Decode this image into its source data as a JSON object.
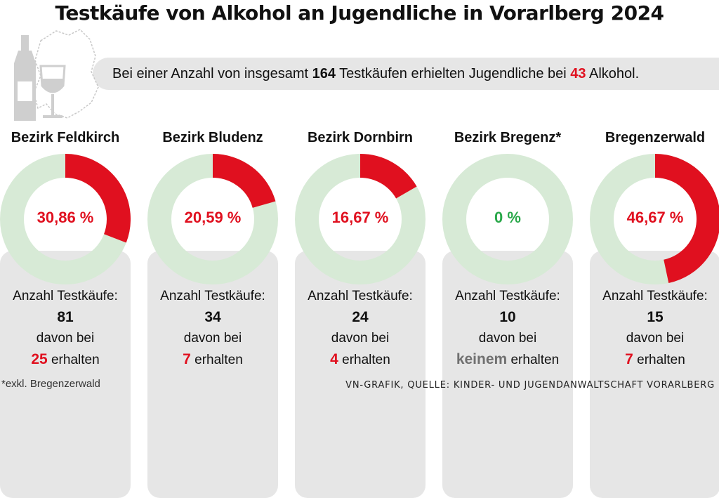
{
  "title": "Testkäufe von Alkohol an Jugendliche in Vorarlberg 2024",
  "summary": {
    "prefix": "Bei einer Anzahl von insgesamt ",
    "total": "164",
    "middle": " Testkäufen erhielten Jugendliche bei ",
    "alcohol_count": "43",
    "suffix": " Alkohol."
  },
  "colors": {
    "red": "#e0101f",
    "green": "#2aa84a",
    "ring": "#d7ead6",
    "card": "#e6e6e6"
  },
  "icons": [
    "bottle-icon",
    "wine-glass-icon",
    "vorarlberg-map-icon"
  ],
  "chart_data": {
    "type": "donut",
    "districts": [
      {
        "name": "Bezirk Feldkirch",
        "percent": 30.86,
        "percent_label": "30,86 %",
        "tests": "81",
        "received": "25",
        "count_label": "Anzahl Testkäufe:",
        "davon": "davon bei",
        "erhalten": " erhalten"
      },
      {
        "name": "Bezirk Bludenz",
        "percent": 20.59,
        "percent_label": "20,59 %",
        "tests": "34",
        "received": "7",
        "count_label": "Anzahl Testkäufe:",
        "davon": "davon bei",
        "erhalten": " erhalten"
      },
      {
        "name": "Bezirk Dornbirn",
        "percent": 16.67,
        "percent_label": "16,67 %",
        "tests": "24",
        "received": "4",
        "count_label": "Anzahl Testkäufe:",
        "davon": "davon bei",
        "erhalten": " erhalten"
      },
      {
        "name": "Bezirk Bregenz*",
        "percent": 0,
        "percent_label": "0 %",
        "tests": "10",
        "received": "keinem",
        "count_label": "Anzahl Testkäufe:",
        "davon": "davon bei",
        "erhalten": " erhalten"
      },
      {
        "name": "Bregenzerwald",
        "percent": 46.67,
        "percent_label": "46,67 %",
        "tests": "15",
        "received": "7",
        "count_label": "Anzahl Testkäufe:",
        "davon": "davon bei",
        "erhalten": " erhalten"
      }
    ]
  },
  "footnote": "*exkl. Bregenzerwald",
  "source": "VN-GRAFIK, QUELLE: KINDER- UND JUGENDANWALTSCHAFT VORARLBERG"
}
